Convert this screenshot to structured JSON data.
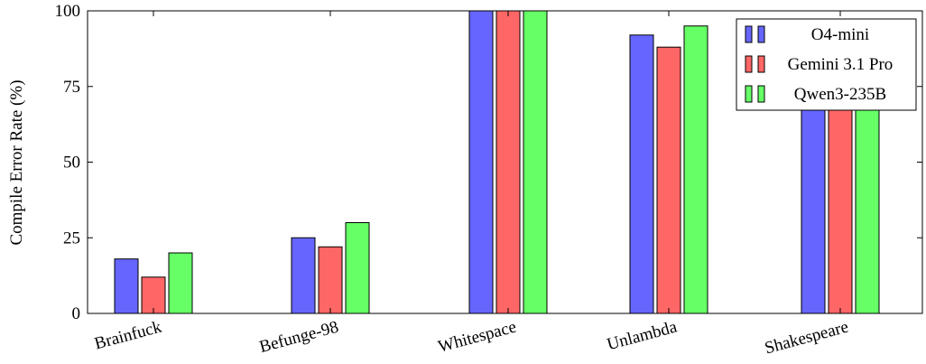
{
  "chart_data": {
    "type": "bar",
    "title": "",
    "xlabel": "",
    "ylabel": "Compile Error Rate (%)",
    "ylim": [
      0,
      100
    ],
    "yticks": [
      0,
      25,
      50,
      75,
      100
    ],
    "grid": false,
    "legend_position": "top-right",
    "categories": [
      "Brainfuck",
      "Befunge-98",
      "Whitespace",
      "Unlambda",
      "Shakespeare"
    ],
    "series": [
      {
        "name": "O4-mini",
        "color": "#6666ff",
        "values": [
          18,
          25,
          100,
          92,
          80
        ]
      },
      {
        "name": "Gemini 3.1 Pro",
        "color": "#ff6666",
        "values": [
          12,
          22,
          100,
          88,
          78
        ]
      },
      {
        "name": "Qwen3-235B",
        "color": "#66ff66",
        "values": [
          20,
          30,
          100,
          95,
          82
        ]
      }
    ]
  }
}
